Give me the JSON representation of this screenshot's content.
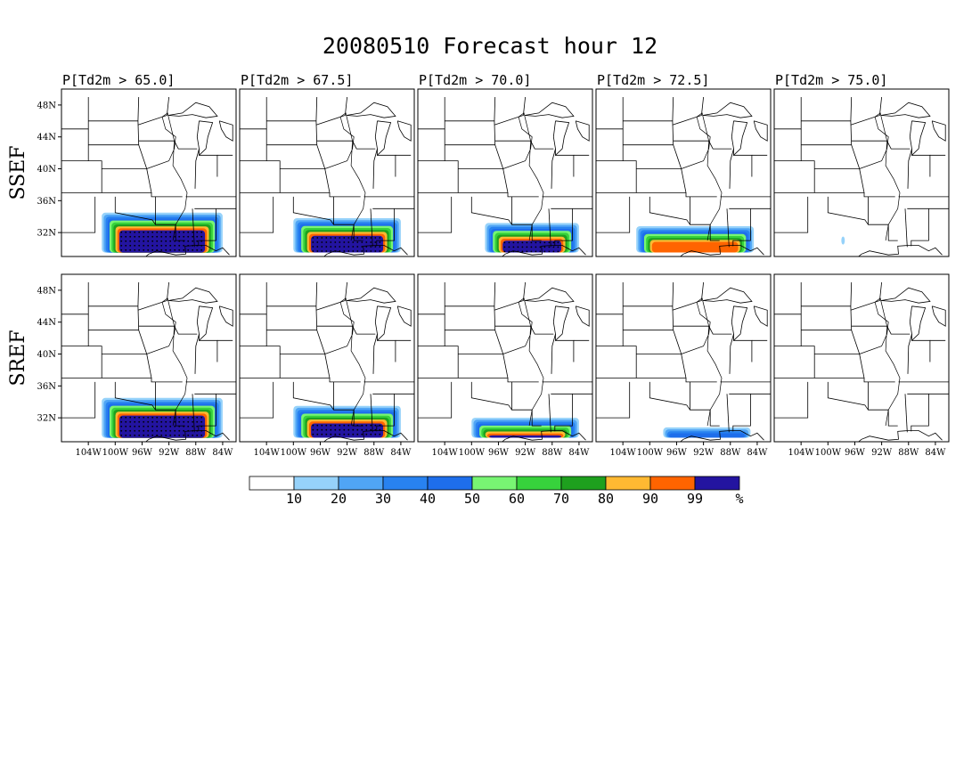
{
  "title": "20080510 Forecast hour 12",
  "rows": [
    {
      "label": "SSEF",
      "key": "ssef"
    },
    {
      "label": "SREF",
      "key": "sref"
    }
  ],
  "columns": [
    {
      "title": "P[Td2m > 65.0]",
      "threshold_F": 65.0
    },
    {
      "title": "P[Td2m > 67.5]",
      "threshold_F": 67.5
    },
    {
      "title": "P[Td2m > 70.0]",
      "threshold_F": 70.0
    },
    {
      "title": "P[Td2m > 72.5]",
      "threshold_F": 72.5
    },
    {
      "title": "P[Td2m > 75.0]",
      "threshold_F": 75.0
    }
  ],
  "map": {
    "lon_range": [
      -108,
      -82
    ],
    "lat_range": [
      29,
      50
    ],
    "lat_ticks": [
      {
        "value": 48,
        "label": "48N"
      },
      {
        "value": 44,
        "label": "44N"
      },
      {
        "value": 40,
        "label": "40N"
      },
      {
        "value": 36,
        "label": "36N"
      },
      {
        "value": 32,
        "label": "32N"
      }
    ],
    "lon_ticks": [
      {
        "value": -104,
        "label": "104W"
      },
      {
        "value": -100,
        "label": "100W"
      },
      {
        "value": -96,
        "label": "96W"
      },
      {
        "value": -92,
        "label": "92W"
      },
      {
        "value": -88,
        "label": "88W"
      },
      {
        "value": -84,
        "label": "84W"
      }
    ]
  },
  "colorbar": {
    "bins": [
      {
        "lo": 0,
        "hi": 10,
        "color": "#ffffff"
      },
      {
        "lo": 10,
        "hi": 20,
        "color": "#96d2fa"
      },
      {
        "lo": 20,
        "hi": 30,
        "color": "#50a5f5"
      },
      {
        "lo": 30,
        "hi": 40,
        "color": "#2882f0"
      },
      {
        "lo": 40,
        "hi": 50,
        "color": "#1e6eeb"
      },
      {
        "lo": 50,
        "hi": 60,
        "color": "#78f573"
      },
      {
        "lo": 60,
        "hi": 70,
        "color": "#37d23c"
      },
      {
        "lo": 70,
        "hi": 80,
        "color": "#1ea01e"
      },
      {
        "lo": 80,
        "hi": 90,
        "color": "#ffb932"
      },
      {
        "lo": 90,
        "hi": 99,
        "color": "#ff6400"
      },
      {
        "lo": 99,
        "hi": 100,
        "color": "#2314a0"
      }
    ],
    "labels": [
      "10",
      "20",
      "30",
      "40",
      "50",
      "60",
      "70",
      "80",
      "90",
      "99"
    ],
    "unit": "%"
  },
  "probability_fields": {
    "ssef": [
      {
        "threshold_F": 65.0,
        "lon_range": [
          -102,
          -84
        ],
        "lat_range": [
          29.5,
          34.5
        ],
        "max_pct": 99,
        "stippled": true
      },
      {
        "threshold_F": 67.5,
        "lon_range": [
          -100,
          -84
        ],
        "lat_range": [
          29.5,
          33.8
        ],
        "max_pct": 99,
        "stippled": true
      },
      {
        "threshold_F": 70.0,
        "lon_range": [
          -98,
          -84
        ],
        "lat_range": [
          29.5,
          33.2
        ],
        "max_pct": 99,
        "stippled": true
      },
      {
        "threshold_F": 72.5,
        "lon_range": [
          -102,
          -84.5
        ],
        "lat_range": [
          29.5,
          32.8
        ],
        "max_pct": 90,
        "stippled": false
      },
      {
        "threshold_F": 75.0,
        "lon_range": [
          -98,
          -97.5
        ],
        "lat_range": [
          30.5,
          31.5
        ],
        "max_pct": 20,
        "stippled": false
      }
    ],
    "sref": [
      {
        "threshold_F": 65.0,
        "lon_range": [
          -102,
          -84
        ],
        "lat_range": [
          29.5,
          34.5
        ],
        "max_pct": 99,
        "stippled": true
      },
      {
        "threshold_F": 67.5,
        "lon_range": [
          -100,
          -84
        ],
        "lat_range": [
          29.5,
          33.5
        ],
        "max_pct": 99,
        "stippled": true
      },
      {
        "threshold_F": 70.0,
        "lon_range": [
          -100,
          -84
        ],
        "lat_range": [
          29.5,
          32.0
        ],
        "max_pct": 99,
        "stippled": true
      },
      {
        "threshold_F": 72.5,
        "lon_range": [
          -98,
          -85
        ],
        "lat_range": [
          29.5,
          30.8
        ],
        "max_pct": 40,
        "stippled": false
      },
      {
        "threshold_F": 75.0,
        "lon_range": [
          -100,
          -84
        ],
        "lat_range": [
          29.5,
          29.5
        ],
        "max_pct": 0,
        "stippled": false
      }
    ]
  }
}
